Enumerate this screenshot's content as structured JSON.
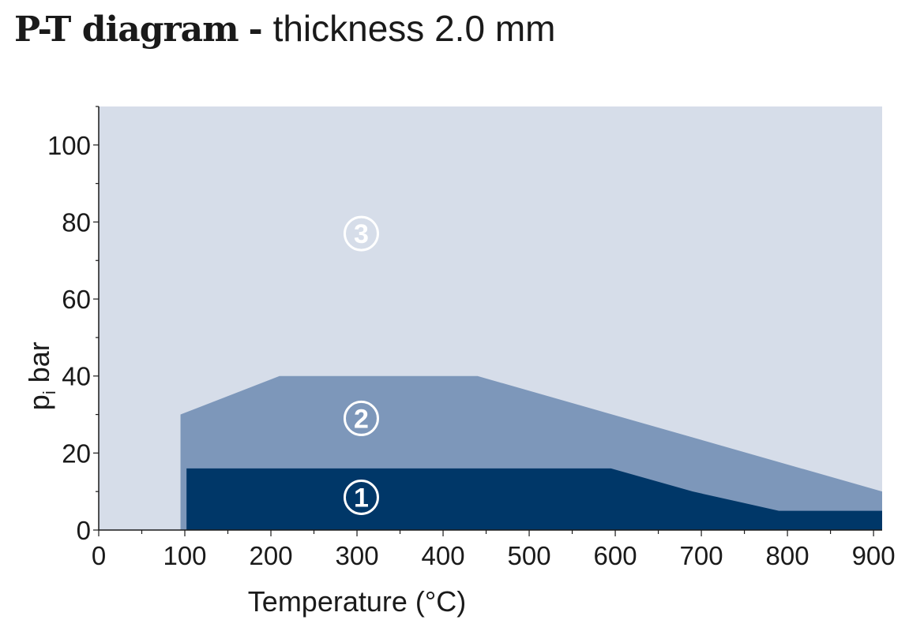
{
  "title": {
    "bold": "P-T diagram",
    "separator": "-",
    "rest": "thickness 2.0 mm"
  },
  "chart_data": {
    "type": "area",
    "xlabel": "Temperature (°C)",
    "ylabel": "p",
    "ylabel_subscript": "i",
    "ylabel_unit": "bar",
    "xlim": [
      0,
      910
    ],
    "ylim": [
      0,
      110
    ],
    "x_ticks": [
      0,
      100,
      200,
      300,
      400,
      500,
      600,
      700,
      800,
      900
    ],
    "y_ticks": [
      0,
      20,
      40,
      60,
      80,
      100
    ],
    "grid": false,
    "background_color": "#d6dde9",
    "regions": [
      {
        "label": "③",
        "color": "#d6dde9",
        "label_at": [
          305,
          77
        ]
      },
      {
        "label": "②",
        "color": "#7d97ba",
        "points": [
          [
            95,
            0
          ],
          [
            95,
            30
          ],
          [
            210,
            40
          ],
          [
            440,
            40
          ],
          [
            910,
            10
          ],
          [
            910,
            0
          ]
        ],
        "label_at": [
          305,
          29
        ]
      },
      {
        "label": "①",
        "color": "#003768",
        "points": [
          [
            102,
            0
          ],
          [
            102,
            16
          ],
          [
            595,
            16
          ],
          [
            690,
            10
          ],
          [
            790,
            5
          ],
          [
            910,
            5
          ],
          [
            910,
            0
          ]
        ],
        "label_at": [
          305,
          8.5
        ]
      }
    ]
  }
}
